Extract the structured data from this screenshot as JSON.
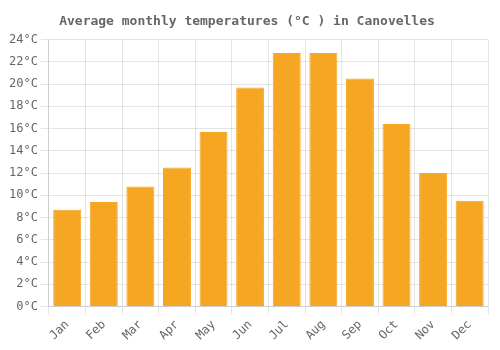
{
  "chart_data": {
    "type": "bar",
    "title": "Average monthly temperatures (°C ) in Canovelles",
    "categories": [
      "Jan",
      "Feb",
      "Mar",
      "Apr",
      "May",
      "Jun",
      "Jul",
      "Aug",
      "Sep",
      "Oct",
      "Nov",
      "Dec"
    ],
    "values": [
      8.7,
      9.4,
      10.8,
      12.5,
      15.7,
      19.7,
      22.8,
      22.8,
      20.5,
      16.4,
      12.0,
      9.5
    ],
    "color": "#F5A623",
    "ylim": [
      0,
      24
    ],
    "yticks": [
      {
        "value": 0,
        "label": "0°C"
      },
      {
        "value": 2,
        "label": "2°C"
      },
      {
        "value": 4,
        "label": "4°C"
      },
      {
        "value": 6,
        "label": "6°C"
      },
      {
        "value": 8,
        "label": "8°C"
      },
      {
        "value": 10,
        "label": "10°C"
      },
      {
        "value": 12,
        "label": "12°C"
      },
      {
        "value": 14,
        "label": "14°C"
      },
      {
        "value": 16,
        "label": "16°C"
      },
      {
        "value": 18,
        "label": "18°C"
      },
      {
        "value": 20,
        "label": "20°C"
      },
      {
        "value": 22,
        "label": "22°C"
      },
      {
        "value": 24,
        "label": "24°C"
      }
    ],
    "grid": true
  }
}
